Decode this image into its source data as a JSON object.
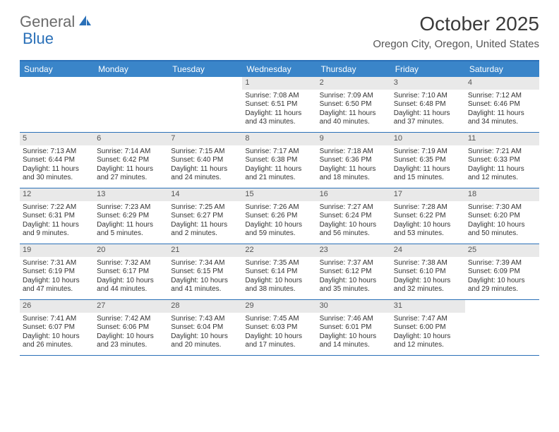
{
  "logo": {
    "text_a": "General",
    "text_b": "Blue"
  },
  "title": "October 2025",
  "location": "Oregon City, Oregon, United States",
  "colors": {
    "header_bg": "#3a85c9",
    "border": "#2a70b8",
    "daynum_bg": "#e9e9e9",
    "text": "#333333"
  },
  "day_names": [
    "Sunday",
    "Monday",
    "Tuesday",
    "Wednesday",
    "Thursday",
    "Friday",
    "Saturday"
  ],
  "weeks": [
    [
      {
        "blank": true
      },
      {
        "blank": true
      },
      {
        "blank": true
      },
      {
        "n": "1",
        "sr": "7:08 AM",
        "ss": "6:51 PM",
        "dh": "11",
        "dm": "43"
      },
      {
        "n": "2",
        "sr": "7:09 AM",
        "ss": "6:50 PM",
        "dh": "11",
        "dm": "40"
      },
      {
        "n": "3",
        "sr": "7:10 AM",
        "ss": "6:48 PM",
        "dh": "11",
        "dm": "37"
      },
      {
        "n": "4",
        "sr": "7:12 AM",
        "ss": "6:46 PM",
        "dh": "11",
        "dm": "34"
      }
    ],
    [
      {
        "n": "5",
        "sr": "7:13 AM",
        "ss": "6:44 PM",
        "dh": "11",
        "dm": "30"
      },
      {
        "n": "6",
        "sr": "7:14 AM",
        "ss": "6:42 PM",
        "dh": "11",
        "dm": "27"
      },
      {
        "n": "7",
        "sr": "7:15 AM",
        "ss": "6:40 PM",
        "dh": "11",
        "dm": "24"
      },
      {
        "n": "8",
        "sr": "7:17 AM",
        "ss": "6:38 PM",
        "dh": "11",
        "dm": "21"
      },
      {
        "n": "9",
        "sr": "7:18 AM",
        "ss": "6:36 PM",
        "dh": "11",
        "dm": "18"
      },
      {
        "n": "10",
        "sr": "7:19 AM",
        "ss": "6:35 PM",
        "dh": "11",
        "dm": "15"
      },
      {
        "n": "11",
        "sr": "7:21 AM",
        "ss": "6:33 PM",
        "dh": "11",
        "dm": "12"
      }
    ],
    [
      {
        "n": "12",
        "sr": "7:22 AM",
        "ss": "6:31 PM",
        "dh": "11",
        "dm": "9"
      },
      {
        "n": "13",
        "sr": "7:23 AM",
        "ss": "6:29 PM",
        "dh": "11",
        "dm": "5"
      },
      {
        "n": "14",
        "sr": "7:25 AM",
        "ss": "6:27 PM",
        "dh": "11",
        "dm": "2"
      },
      {
        "n": "15",
        "sr": "7:26 AM",
        "ss": "6:26 PM",
        "dh": "10",
        "dm": "59"
      },
      {
        "n": "16",
        "sr": "7:27 AM",
        "ss": "6:24 PM",
        "dh": "10",
        "dm": "56"
      },
      {
        "n": "17",
        "sr": "7:28 AM",
        "ss": "6:22 PM",
        "dh": "10",
        "dm": "53"
      },
      {
        "n": "18",
        "sr": "7:30 AM",
        "ss": "6:20 PM",
        "dh": "10",
        "dm": "50"
      }
    ],
    [
      {
        "n": "19",
        "sr": "7:31 AM",
        "ss": "6:19 PM",
        "dh": "10",
        "dm": "47"
      },
      {
        "n": "20",
        "sr": "7:32 AM",
        "ss": "6:17 PM",
        "dh": "10",
        "dm": "44"
      },
      {
        "n": "21",
        "sr": "7:34 AM",
        "ss": "6:15 PM",
        "dh": "10",
        "dm": "41"
      },
      {
        "n": "22",
        "sr": "7:35 AM",
        "ss": "6:14 PM",
        "dh": "10",
        "dm": "38"
      },
      {
        "n": "23",
        "sr": "7:37 AM",
        "ss": "6:12 PM",
        "dh": "10",
        "dm": "35"
      },
      {
        "n": "24",
        "sr": "7:38 AM",
        "ss": "6:10 PM",
        "dh": "10",
        "dm": "32"
      },
      {
        "n": "25",
        "sr": "7:39 AM",
        "ss": "6:09 PM",
        "dh": "10",
        "dm": "29"
      }
    ],
    [
      {
        "n": "26",
        "sr": "7:41 AM",
        "ss": "6:07 PM",
        "dh": "10",
        "dm": "26"
      },
      {
        "n": "27",
        "sr": "7:42 AM",
        "ss": "6:06 PM",
        "dh": "10",
        "dm": "23"
      },
      {
        "n": "28",
        "sr": "7:43 AM",
        "ss": "6:04 PM",
        "dh": "10",
        "dm": "20"
      },
      {
        "n": "29",
        "sr": "7:45 AM",
        "ss": "6:03 PM",
        "dh": "10",
        "dm": "17"
      },
      {
        "n": "30",
        "sr": "7:46 AM",
        "ss": "6:01 PM",
        "dh": "10",
        "dm": "14"
      },
      {
        "n": "31",
        "sr": "7:47 AM",
        "ss": "6:00 PM",
        "dh": "10",
        "dm": "12"
      },
      {
        "blank": true
      }
    ]
  ]
}
